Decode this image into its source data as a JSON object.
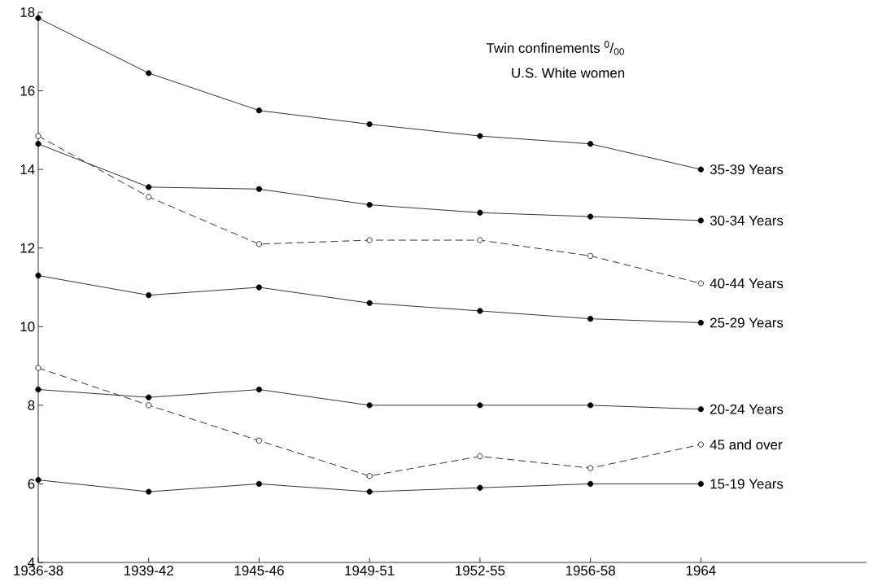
{
  "chart_data": {
    "type": "line",
    "annotations": [
      "Twin confinements $^{0}$/$_{00}$",
      "U.S. White women"
    ],
    "categories": [
      "1936-38",
      "1939-42",
      "1945-46",
      "1949-51",
      "1952-55",
      "1956-58",
      "1964"
    ],
    "ylim": [
      4,
      18
    ],
    "yticks": [
      4,
      6,
      8,
      10,
      12,
      14,
      16,
      18
    ],
    "marker": "circle",
    "legend": false,
    "grid": false,
    "series": [
      {
        "name": "35-39 Years",
        "color": "#000000",
        "line_style": "solid",
        "values": [
          17.85,
          16.45,
          15.5,
          15.15,
          14.85,
          14.65,
          14.0
        ]
      },
      {
        "name": "30-34 Years",
        "color": "#000000",
        "line_style": "solid",
        "values": [
          14.65,
          13.55,
          13.5,
          13.1,
          12.9,
          12.8,
          12.7
        ]
      },
      {
        "name": "40-44 Years",
        "color": "#000000",
        "line_style": "dashed",
        "values": [
          14.85,
          13.3,
          12.1,
          12.2,
          12.2,
          11.8,
          11.1
        ]
      },
      {
        "name": "25-29 Years",
        "color": "#000000",
        "line_style": "solid",
        "values": [
          11.3,
          10.8,
          11.0,
          10.6,
          10.4,
          10.2,
          10.1
        ]
      },
      {
        "name": "20-24 Years",
        "color": "#000000",
        "line_style": "solid",
        "values": [
          8.4,
          8.2,
          8.4,
          8.0,
          8.0,
          8.0,
          7.9
        ]
      },
      {
        "name": "45 and over",
        "color": "#000000",
        "line_style": "dashed",
        "values": [
          8.95,
          8.0,
          7.1,
          6.2,
          6.7,
          6.4,
          7.0
        ]
      },
      {
        "name": "15-19 Years",
        "color": "#000000",
        "line_style": "solid",
        "values": [
          6.1,
          5.8,
          6.0,
          5.8,
          5.9,
          6.0,
          6.0
        ]
      }
    ]
  }
}
